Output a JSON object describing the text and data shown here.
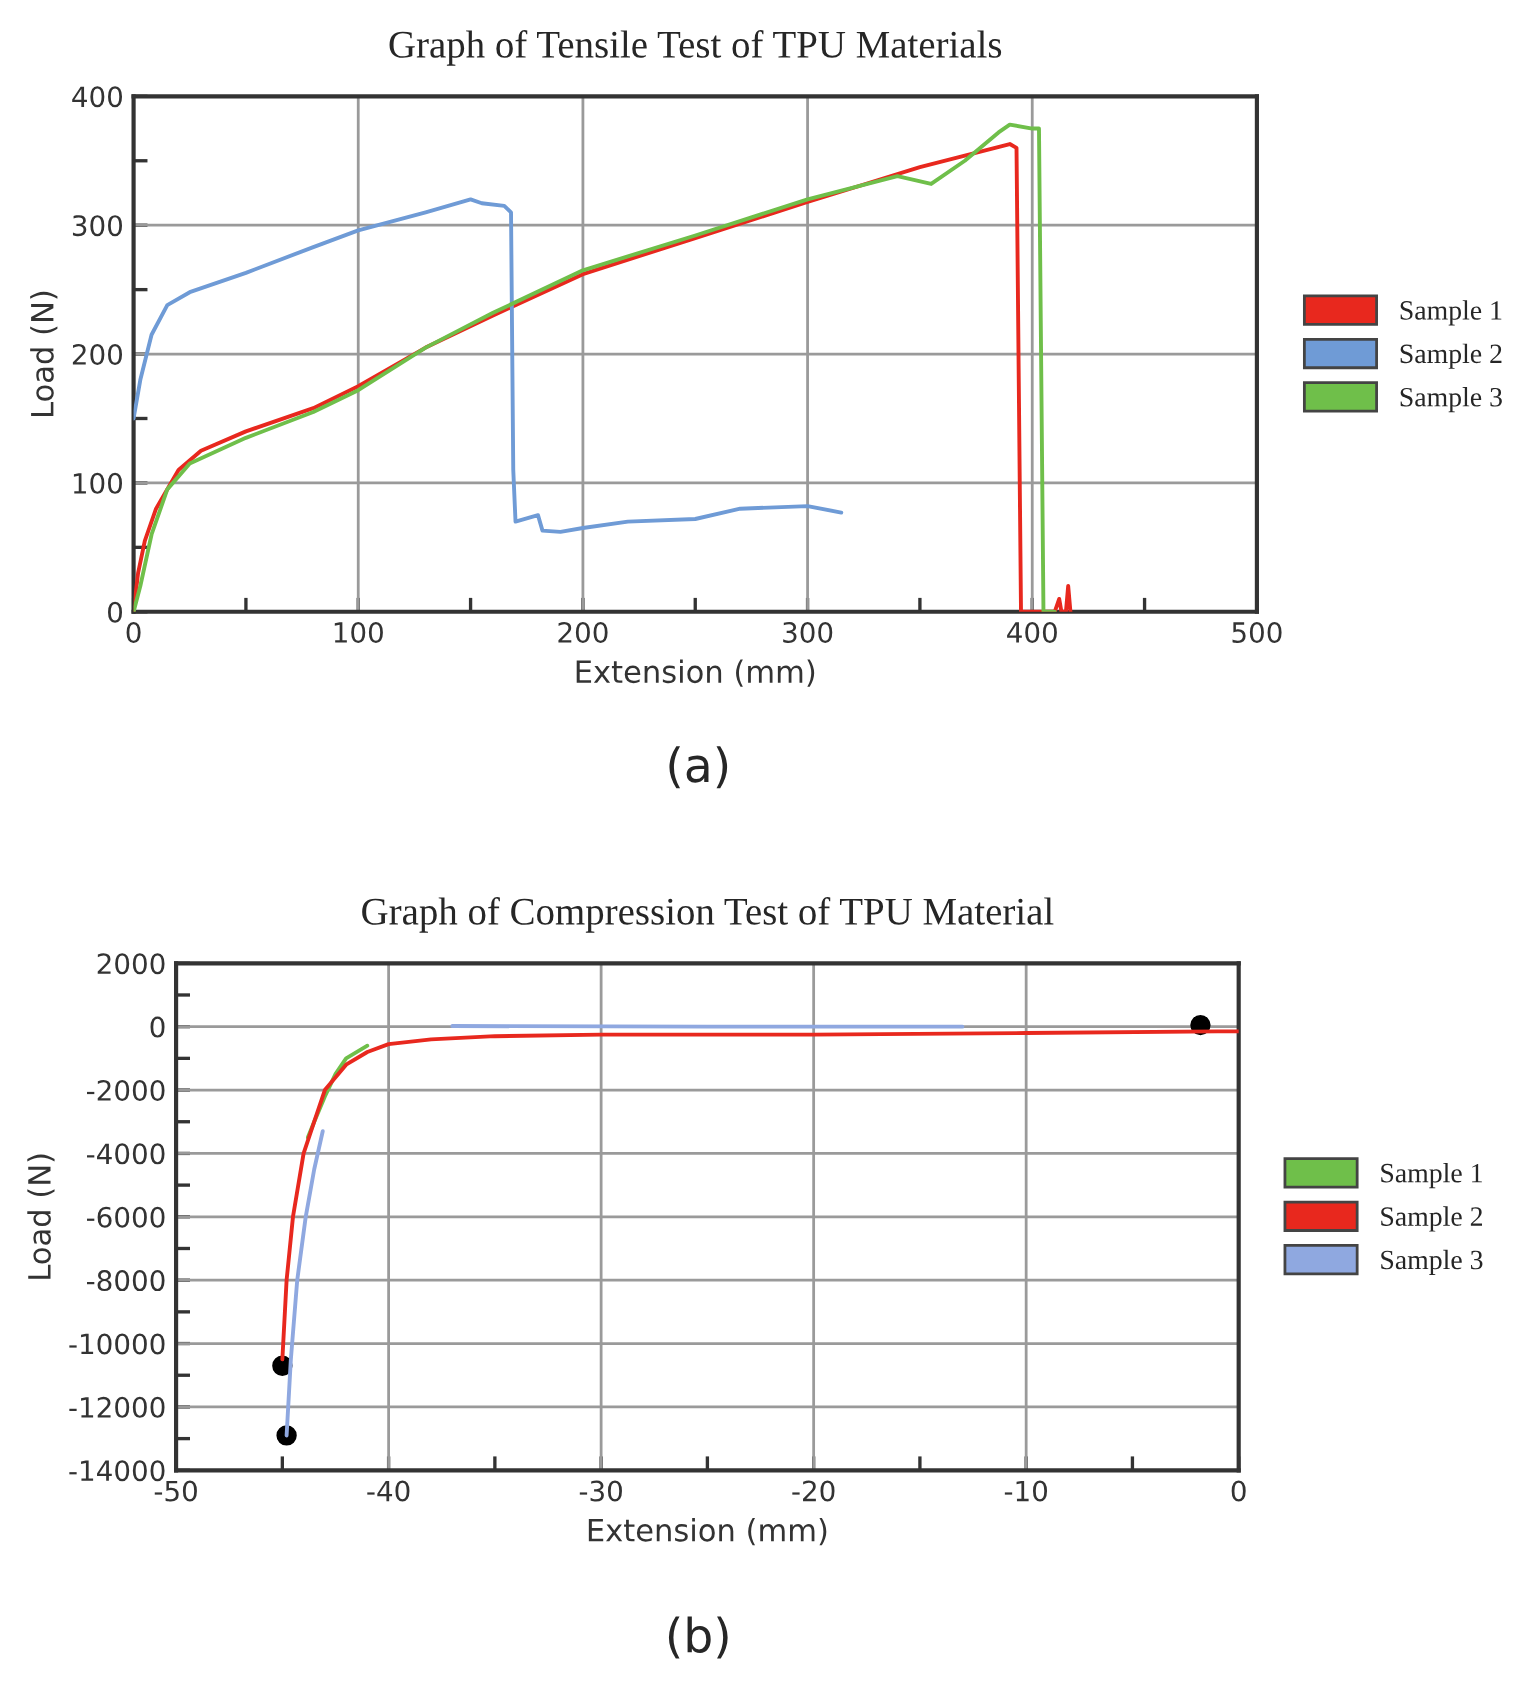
{
  "chart_data": [
    {
      "type": "line",
      "title": "Graph of Tensile Test of TPU Materials",
      "xlabel": "Extension (mm)",
      "ylabel": "Load (N)",
      "annotations": [
        "(a)"
      ],
      "xlim": [
        0,
        500
      ],
      "ylim": [
        0,
        400
      ],
      "xticks": [
        0,
        {
          "value": 50,
          "label": null
        },
        100,
        {
          "value": 150,
          "label": null
        },
        200,
        {
          "value": 250,
          "label": null
        },
        300,
        {
          "value": 350,
          "label": null
        },
        400,
        {
          "value": 450,
          "label": null
        },
        500
      ],
      "yticks": [
        0,
        {
          "value": 50,
          "label": null
        },
        100,
        {
          "value": 150,
          "label": null
        },
        200,
        {
          "value": 250,
          "label": null
        },
        300,
        {
          "value": 350,
          "label": null
        },
        400
      ],
      "grid": true,
      "legend": "right",
      "marker": "none",
      "line_style": "solid",
      "series": [
        {
          "name": "Sample 1",
          "color": "#e8281e",
          "x": [
            0,
            2,
            5,
            10,
            20,
            30,
            50,
            80,
            100,
            130,
            160,
            200,
            250,
            300,
            350,
            390,
            393,
            395,
            400,
            410,
            412,
            413,
            415,
            416,
            417
          ],
          "values": [
            0,
            30,
            55,
            80,
            110,
            125,
            140,
            158,
            175,
            205,
            230,
            262,
            290,
            318,
            345,
            363,
            360,
            0,
            0,
            0,
            10,
            0,
            0,
            20,
            0
          ]
        },
        {
          "name": "Sample 2",
          "color": "#6f9bd6",
          "x": [
            0,
            3,
            8,
            15,
            25,
            50,
            80,
            100,
            130,
            150,
            155,
            165,
            168,
            169,
            170,
            180,
            182,
            190,
            200,
            220,
            250,
            270,
            300,
            315
          ],
          "values": [
            150,
            180,
            215,
            238,
            248,
            263,
            283,
            296,
            310,
            320,
            317,
            315,
            310,
            110,
            70,
            75,
            63,
            62,
            65,
            70,
            72,
            80,
            82,
            77
          ]
        },
        {
          "name": "Sample 3",
          "color": "#6fbf4a",
          "x": [
            0,
            3,
            8,
            15,
            25,
            50,
            80,
            100,
            130,
            160,
            200,
            250,
            300,
            340,
            355,
            370,
            385,
            390,
            400,
            403,
            405,
            410
          ],
          "values": [
            0,
            20,
            60,
            95,
            115,
            135,
            155,
            172,
            205,
            232,
            265,
            292,
            320,
            338,
            332,
            350,
            372,
            378,
            375,
            375,
            0,
            0
          ]
        }
      ]
    },
    {
      "type": "line",
      "title": "Graph of Compression Test of TPU Material",
      "xlabel": "Extension (mm)",
      "ylabel": "Load (N)",
      "annotations": [
        "(b)"
      ],
      "xlim": [
        -50,
        0
      ],
      "ylim": [
        -14000,
        2000
      ],
      "xticks": [
        -50,
        {
          "value": -45,
          "label": null
        },
        -40,
        {
          "value": -35,
          "label": null
        },
        -30,
        {
          "value": -25,
          "label": null
        },
        -20,
        {
          "value": -15,
          "label": null
        },
        -10,
        {
          "value": -5,
          "label": null
        },
        0
      ],
      "yticks": [
        -14000,
        {
          "value": -13000,
          "label": null
        },
        -12000,
        {
          "value": -11000,
          "label": null
        },
        -10000,
        {
          "value": -9000,
          "label": null
        },
        -8000,
        {
          "value": -7000,
          "label": null
        },
        -6000,
        {
          "value": -5000,
          "label": null
        },
        -4000,
        {
          "value": -3000,
          "label": null
        },
        -2000,
        {
          "value": -1000,
          "label": null
        },
        0,
        {
          "value": 1000,
          "label": null
        },
        2000
      ],
      "grid": true,
      "legend": "right",
      "marker": "none",
      "line_style": "solid",
      "series": [
        {
          "name": "Sample 1",
          "color": "#6fbf4a",
          "x": [
            -43.8,
            -43.5,
            -43,
            -42.5,
            -42,
            -41
          ],
          "values": [
            -3500,
            -3000,
            -2200,
            -1500,
            -1000,
            -600
          ]
        },
        {
          "name": "Sample 2",
          "color": "#e8281e",
          "x": [
            -45,
            -44.8,
            -44.5,
            -44,
            -43.5,
            -43,
            -42,
            -41,
            -40,
            -38,
            -35,
            -30,
            -20,
            -10,
            -1,
            0
          ],
          "values": [
            -10500,
            -8000,
            -6000,
            -4000,
            -3000,
            -2000,
            -1200,
            -800,
            -550,
            -400,
            -300,
            -250,
            -250,
            -200,
            -150,
            -150
          ]
        },
        {
          "name": "Sample 3",
          "color": "#8fa8e0",
          "x": [
            -44.8,
            -44.6,
            -44.3,
            -43.9,
            -43.5,
            -43.1,
            -40,
            -37,
            -25,
            -13
          ],
          "values": [
            -12900,
            -10500,
            -8000,
            -6000,
            -4500,
            -3300,
            null,
            20,
            0,
            0
          ]
        },
        {
          "type": "scatter",
          "marker": "circle",
          "color": "#000000",
          "x": [
            -45,
            -44.8,
            -1.8
          ],
          "values": [
            -10700,
            -12900,
            50
          ]
        }
      ]
    }
  ]
}
